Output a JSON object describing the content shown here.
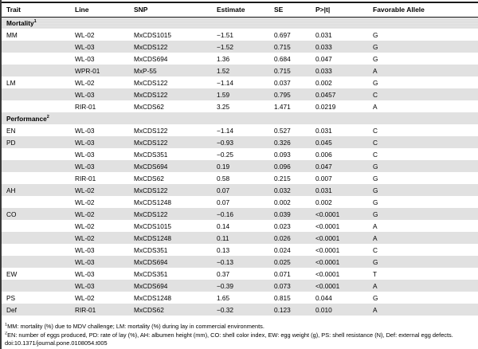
{
  "table": {
    "columns": [
      "Trait",
      "Line",
      "SNP",
      "Estimate",
      "SE",
      "P>|t|",
      "Favorable Allele"
    ],
    "rows": [
      {
        "section": "Mortality",
        "sup": "1"
      },
      {
        "trait": "MM",
        "line": "WL-02",
        "snp": "MxCDS1015",
        "estimate": "−1.51",
        "se": "0.697",
        "p": "0.031",
        "allele": "G"
      },
      {
        "trait": "",
        "line": "WL-03",
        "snp": "MxCDS122",
        "estimate": "−1.52",
        "se": "0.715",
        "p": "0.033",
        "allele": "G"
      },
      {
        "trait": "",
        "line": "WL-03",
        "snp": "MxCDS694",
        "estimate": "1.36",
        "se": "0.684",
        "p": "0.047",
        "allele": "G"
      },
      {
        "trait": "",
        "line": "WPR-01",
        "snp": "MxP-55",
        "estimate": "1.52",
        "se": "0.715",
        "p": "0.033",
        "allele": "A"
      },
      {
        "trait": "LM",
        "line": "WL-02",
        "snp": "MxCDS122",
        "estimate": "−1.14",
        "se": "0.037",
        "p": "0.002",
        "allele": "G"
      },
      {
        "trait": "",
        "line": "WL-03",
        "snp": "MxCDS122",
        "estimate": "1.59",
        "se": "0.795",
        "p": "0.0457",
        "allele": "C"
      },
      {
        "trait": "",
        "line": "RIR-01",
        "snp": "MxCDS62",
        "estimate": "3.25",
        "se": "1.471",
        "p": "0.0219",
        "allele": "A"
      },
      {
        "section": "Performance",
        "sup": "2"
      },
      {
        "trait": "EN",
        "line": "WL-03",
        "snp": "MxCDS122",
        "estimate": "−1.14",
        "se": "0.527",
        "p": "0.031",
        "allele": "C"
      },
      {
        "trait": "PD",
        "line": "WL-03",
        "snp": "MxCDS122",
        "estimate": "−0.93",
        "se": "0.326",
        "p": "0.045",
        "allele": "C"
      },
      {
        "trait": "",
        "line": "WL-03",
        "snp": "MxCDS351",
        "estimate": "−0.25",
        "se": "0.093",
        "p": "0.006",
        "allele": "C"
      },
      {
        "trait": "",
        "line": "WL-03",
        "snp": "MxCDS694",
        "estimate": "0.19",
        "se": "0.096",
        "p": "0.047",
        "allele": "G"
      },
      {
        "trait": "",
        "line": "RIR-01",
        "snp": "MxCDS62",
        "estimate": "0.58",
        "se": "0.215",
        "p": "0.007",
        "allele": "G"
      },
      {
        "trait": "AH",
        "line": "WL-02",
        "snp": "MxCDS122",
        "estimate": "0.07",
        "se": "0.032",
        "p": "0.031",
        "allele": "G"
      },
      {
        "trait": "",
        "line": "WL-02",
        "snp": "MxCDS1248",
        "estimate": "0.07",
        "se": "0.002",
        "p": "0.002",
        "allele": "G"
      },
      {
        "trait": "CO",
        "line": "WL-02",
        "snp": "MxCDS122",
        "estimate": "−0.16",
        "se": "0.039",
        "p": "<0.0001",
        "allele": "G"
      },
      {
        "trait": "",
        "line": "WL-02",
        "snp": "MxCDS1015",
        "estimate": "0.14",
        "se": "0.023",
        "p": "<0.0001",
        "allele": "A"
      },
      {
        "trait": "",
        "line": "WL-02",
        "snp": "MxCDS1248",
        "estimate": "0.11",
        "se": "0.026",
        "p": "<0.0001",
        "allele": "A"
      },
      {
        "trait": "",
        "line": "WL-03",
        "snp": "MxCDS351",
        "estimate": "0.13",
        "se": "0.024",
        "p": "<0.0001",
        "allele": "C"
      },
      {
        "trait": "",
        "line": "WL-03",
        "snp": "MxCDS694",
        "estimate": "−0.13",
        "se": "0.025",
        "p": "<0.0001",
        "allele": "G"
      },
      {
        "trait": "EW",
        "line": "WL-03",
        "snp": "MxCDS351",
        "estimate": "0.37",
        "se": "0.071",
        "p": "<0.0001",
        "allele": "T"
      },
      {
        "trait": "",
        "line": "WL-03",
        "snp": "MxCDS694",
        "estimate": "−0.39",
        "se": "0.073",
        "p": "<0.0001",
        "allele": "A"
      },
      {
        "trait": "PS",
        "line": "WL-02",
        "snp": "MxCDS1248",
        "estimate": "1.65",
        "se": "0.815",
        "p": "0.044",
        "allele": "G"
      },
      {
        "trait": "Def",
        "line": "RIR-01",
        "snp": "MxCDS62",
        "estimate": "−0.32",
        "se": "0.123",
        "p": "0.010",
        "allele": "A"
      }
    ]
  },
  "footnotes": [
    {
      "sup": "1",
      "text": "MM: mortality (%) due to MDV challenge; LM: mortality (%) during lay in commercial environments."
    },
    {
      "sup": "2",
      "text": "EN: number of eggs produced, PD: rate of lay (%), AH: albumen height (mm), CO: shell color index, EW: egg weight (g), PS: shell resistance (N), Def: external egg defects."
    },
    {
      "sup": "",
      "text": "doi:10.1371/journal.pone.0108054.t005"
    }
  ],
  "colors": {
    "shaded_row": "#e7e7e7",
    "rule": "#1a1a1a",
    "text": "#000000"
  }
}
